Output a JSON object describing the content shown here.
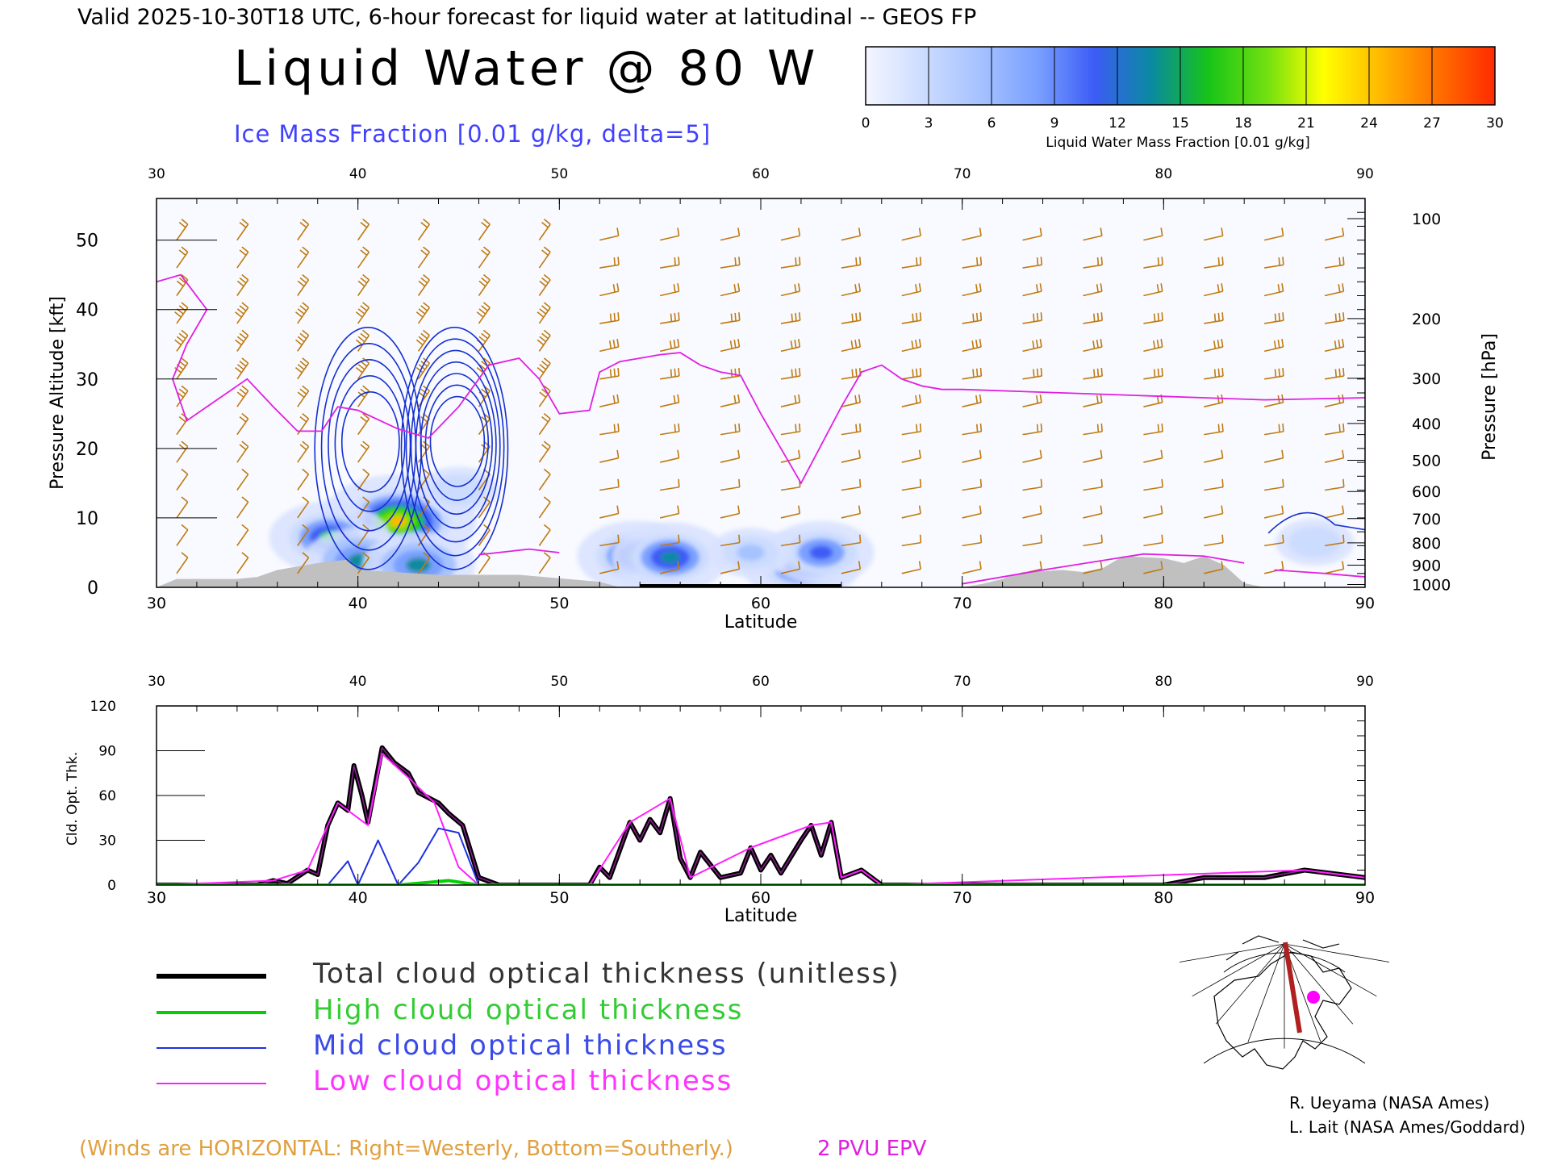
{
  "header": {
    "valid_line": "Valid 2025-10-30T18 UTC, 6-hour forecast for liquid water at latitudinal -- GEOS FP",
    "title": "Liquid Water @ 80 W",
    "subtitle": "Ice Mass Fraction [0.01 g/kg, delta=5]"
  },
  "colorbar": {
    "label": "Liquid Water Mass Fraction [0.01 g/kg]",
    "ticks": [
      "0",
      "3",
      "6",
      "9",
      "12",
      "15",
      "18",
      "21",
      "24",
      "27",
      "30"
    ],
    "colors": [
      "#f4f6ff",
      "#ccdcff",
      "#a6c2ff",
      "#7aa0ff",
      "#3c5cf5",
      "#0a8aa0",
      "#18c418",
      "#70e010",
      "#ffff00",
      "#ffb800",
      "#ff7000",
      "#ff2a00"
    ]
  },
  "footer": {
    "winds_note": "(Winds are HORIZONTAL: Right=Westerly, Bottom=Southerly.)",
    "epv_label": "2 PVU EPV",
    "credit_1": "R. Ueyama (NASA Ames)",
    "credit_2": "L. Lait (NASA Ames/Goddard)"
  },
  "legend": [
    {
      "label": "Total cloud optical thickness (unitless)",
      "color": "#000000",
      "text_color": "#333333"
    },
    {
      "label": "High cloud optical thickness",
      "color": "#00d000",
      "text_color": "#33cc33"
    },
    {
      "label": "Mid cloud optical thickness",
      "color": "#2030e0",
      "text_color": "#3a4ae8"
    },
    {
      "label": "Low cloud optical thickness",
      "color": "#ff20ff",
      "text_color": "#ff33ff"
    }
  ],
  "colors": {
    "wind_barbs": "#c07a10",
    "ice_contours": "#1530d0",
    "epv_line": "#e020e0",
    "terrain": "#c0c0c0",
    "inset_track": "#b02020",
    "inset_marker": "#ff00ff"
  },
  "chart_data": [
    {
      "type": "heatmap",
      "name": "liquid-water-cross-section",
      "xlabel": "Latitude",
      "ylabel_left": "Pressure Altitude [kft]",
      "ylabel_right": "Pressure [hPa]",
      "xlim": [
        30,
        90
      ],
      "ylim_left": [
        0,
        56
      ],
      "x_ticks": [
        "30",
        "40",
        "50",
        "60",
        "70",
        "80",
        "90"
      ],
      "y_ticks_left": [
        "0",
        "10",
        "20",
        "30",
        "40",
        "50"
      ],
      "pressure_ticks": [
        {
          "label": "100",
          "kft": 53.1
        },
        {
          "label": "200",
          "kft": 38.7
        },
        {
          "label": "300",
          "kft": 30.1
        },
        {
          "label": "400",
          "kft": 23.6
        },
        {
          "label": "500",
          "kft": 18.3
        },
        {
          "label": "600",
          "kft": 13.8
        },
        {
          "label": "700",
          "kft": 9.9
        },
        {
          "label": "800",
          "kft": 6.4
        },
        {
          "label": "900",
          "kft": 3.2
        },
        {
          "label": "1000",
          "kft": 0.4
        }
      ],
      "liquid_water_blobs": [
        {
          "lat": 42.0,
          "alt": 9.5,
          "peak": 24
        },
        {
          "lat": 38.6,
          "alt": 7.2,
          "peak": 15
        },
        {
          "lat": 40.1,
          "alt": 3.8,
          "peak": 13
        },
        {
          "lat": 43.0,
          "alt": 3.2,
          "peak": 13
        },
        {
          "lat": 53.8,
          "alt": 4.5,
          "peak": 14
        },
        {
          "lat": 55.5,
          "alt": 4.3,
          "peak": 14
        },
        {
          "lat": 62.0,
          "alt": 3.2,
          "peak": 14
        },
        {
          "lat": 63.0,
          "alt": 5.0,
          "peak": 11
        },
        {
          "lat": 59.5,
          "alt": 5.0,
          "peak": 5
        },
        {
          "lat": 87.5,
          "alt": 6.5,
          "peak": 4
        },
        {
          "lat": 45.0,
          "alt": 14.0,
          "peak": 4
        }
      ],
      "ice_contour_centers": [
        {
          "lat": 40.5,
          "alt": 20.0,
          "levels": 5
        },
        {
          "lat": 44.8,
          "alt": 20.0,
          "levels": 7
        }
      ],
      "epv_2pvu_line": [
        [
          30,
          44
        ],
        [
          31.2,
          45
        ],
        [
          32.5,
          40
        ],
        [
          31.5,
          35
        ],
        [
          30.8,
          30
        ],
        [
          31.5,
          24
        ],
        [
          33,
          27
        ],
        [
          34.5,
          30
        ],
        [
          35.8,
          26
        ],
        [
          37,
          22.5
        ],
        [
          38.2,
          22.5
        ],
        [
          39,
          26
        ],
        [
          40,
          25.5
        ],
        [
          42,
          22.8
        ],
        [
          43.5,
          21.5
        ],
        [
          45,
          26
        ],
        [
          46.5,
          32
        ],
        [
          48,
          33
        ],
        [
          49,
          30
        ],
        [
          50,
          25
        ],
        [
          51.5,
          25.5
        ],
        [
          52,
          31
        ],
        [
          53,
          32.5
        ],
        [
          54,
          33
        ],
        [
          55,
          33.5
        ],
        [
          56,
          33.8
        ],
        [
          57,
          32
        ],
        [
          58,
          31
        ],
        [
          59,
          30.5
        ],
        [
          60,
          25
        ],
        [
          61,
          20
        ],
        [
          62,
          15
        ],
        [
          64,
          26
        ],
        [
          65,
          31
        ],
        [
          66,
          32
        ],
        [
          67,
          30
        ],
        [
          68,
          29
        ],
        [
          69,
          28.5
        ],
        [
          70,
          28.5
        ],
        [
          75,
          28
        ],
        [
          80,
          27.5
        ],
        [
          85,
          27
        ],
        [
          90,
          27.3
        ]
      ],
      "terrain_kft": [
        [
          30,
          0
        ],
        [
          31,
          1.2
        ],
        [
          34,
          1.2
        ],
        [
          35,
          1.5
        ],
        [
          36,
          2.5
        ],
        [
          38,
          3.5
        ],
        [
          39.5,
          4
        ],
        [
          40,
          2.5
        ],
        [
          44,
          1.8
        ],
        [
          48,
          1.8
        ],
        [
          52,
          0.8
        ],
        [
          53,
          0
        ],
        [
          70,
          0
        ],
        [
          71,
          0.5
        ],
        [
          72,
          1.2
        ],
        [
          73,
          2.2
        ],
        [
          75,
          2.5
        ],
        [
          76,
          2.2
        ],
        [
          77,
          2.8
        ],
        [
          78,
          4.5
        ],
        [
          80,
          4.2
        ],
        [
          81,
          3.5
        ],
        [
          82,
          4.5
        ],
        [
          83,
          3.2
        ],
        [
          84,
          0.6
        ],
        [
          85,
          0
        ],
        [
          90,
          0
        ]
      ]
    },
    {
      "type": "line",
      "name": "cloud-optical-thickness",
      "xlabel": "Latitude",
      "ylabel": "Cld. Opt. Thk.",
      "xlim": [
        30,
        90
      ],
      "ylim": [
        0,
        120
      ],
      "x_ticks": [
        "30",
        "40",
        "50",
        "60",
        "70",
        "80",
        "90"
      ],
      "y_ticks": [
        "0",
        "30",
        "60",
        "90",
        "120"
      ],
      "series": [
        {
          "name": "Total cloud optical thickness (unitless)",
          "color": "#000000",
          "width": 6,
          "points": [
            [
              30,
              0
            ],
            [
              35,
              0
            ],
            [
              35.8,
              3
            ],
            [
              36.5,
              1
            ],
            [
              37.5,
              10
            ],
            [
              38,
              7
            ],
            [
              38.5,
              40
            ],
            [
              39,
              55
            ],
            [
              39.5,
              50
            ],
            [
              39.8,
              80
            ],
            [
              40.2,
              60
            ],
            [
              40.5,
              42
            ],
            [
              41.2,
              92
            ],
            [
              41.8,
              82
            ],
            [
              42.5,
              75
            ],
            [
              43,
              62
            ],
            [
              44,
              55
            ],
            [
              44.5,
              48
            ],
            [
              45.2,
              40
            ],
            [
              46,
              5
            ],
            [
              47,
              0
            ],
            [
              51.5,
              0
            ],
            [
              52,
              12
            ],
            [
              52.5,
              5
            ],
            [
              53.5,
              42
            ],
            [
              54,
              30
            ],
            [
              54.5,
              44
            ],
            [
              55,
              35
            ],
            [
              55.5,
              58
            ],
            [
              56,
              18
            ],
            [
              56.5,
              5
            ],
            [
              57,
              22
            ],
            [
              58,
              5
            ],
            [
              59,
              8
            ],
            [
              59.5,
              25
            ],
            [
              60,
              10
            ],
            [
              60.5,
              20
            ],
            [
              61,
              8
            ],
            [
              62,
              30
            ],
            [
              62.5,
              40
            ],
            [
              63,
              20
            ],
            [
              63.5,
              42
            ],
            [
              64,
              5
            ],
            [
              65,
              10
            ],
            [
              66,
              0
            ],
            [
              75,
              0
            ],
            [
              80,
              0
            ],
            [
              82,
              5
            ],
            [
              85,
              5
            ],
            [
              87,
              10
            ],
            [
              90,
              5
            ]
          ]
        },
        {
          "name": "High cloud optical thickness",
          "color": "#00d000",
          "width": 4,
          "points": [
            [
              30,
              0
            ],
            [
              42,
              0
            ],
            [
              44.5,
              3
            ],
            [
              46,
              0
            ],
            [
              90,
              0
            ]
          ]
        },
        {
          "name": "Mid cloud optical thickness",
          "color": "#2030e0",
          "width": 2,
          "points": [
            [
              30,
              0
            ],
            [
              38.5,
              0
            ],
            [
              39.5,
              16
            ],
            [
              40,
              0
            ],
            [
              41,
              30
            ],
            [
              42,
              0
            ],
            [
              43,
              15
            ],
            [
              44,
              38
            ],
            [
              45,
              35
            ],
            [
              46,
              0
            ],
            [
              90,
              0
            ]
          ]
        },
        {
          "name": "Low cloud optical thickness",
          "color": "#ff20ff",
          "width": 2,
          "points": [
            [
              30,
              0
            ],
            [
              35.8,
              3
            ],
            [
              37.5,
              10
            ],
            [
              39,
              55
            ],
            [
              40.5,
              40
            ],
            [
              41.2,
              88
            ],
            [
              42.5,
              72
            ],
            [
              43.8,
              55
            ],
            [
              45,
              12
            ],
            [
              46,
              0
            ],
            [
              51.5,
              0
            ],
            [
              53.5,
              42
            ],
            [
              55.5,
              58
            ],
            [
              56.5,
              5
            ],
            [
              59.5,
              25
            ],
            [
              62.5,
              40
            ],
            [
              63.5,
              42
            ],
            [
              64,
              5
            ],
            [
              65,
              10
            ],
            [
              66,
              0
            ],
            [
              87,
              10
            ],
            [
              90,
              5
            ]
          ]
        }
      ]
    }
  ]
}
